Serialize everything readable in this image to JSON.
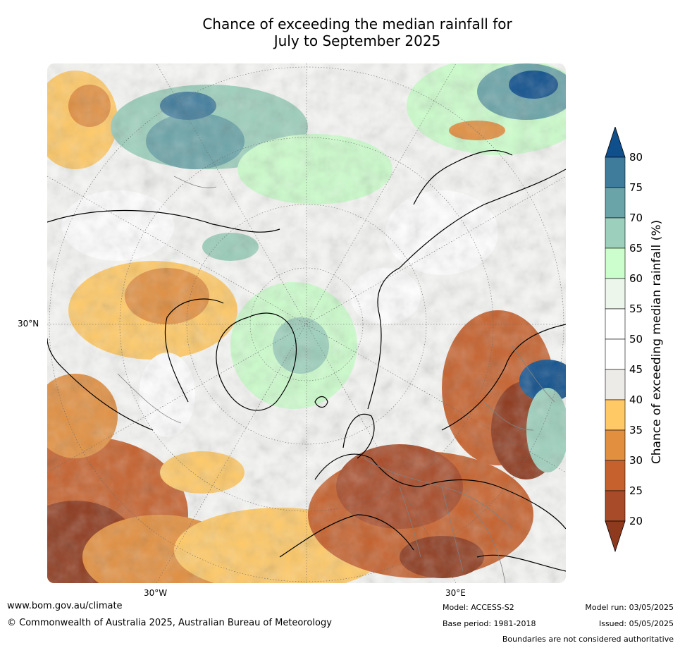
{
  "title_line1": "Chance of exceeding the median rainfall for",
  "title_line2": "July to September 2025",
  "map": {
    "lat_label": "30°N",
    "lon_labels": [
      "30°W",
      "30°E"
    ]
  },
  "colorbar": {
    "label": "Chance of exceeding median rainfall (%)",
    "ticks": [
      "80",
      "75",
      "70",
      "65",
      "60",
      "55",
      "50",
      "45",
      "40",
      "35",
      "30",
      "25",
      "20"
    ],
    "band_colors": [
      "#0e4f8c",
      "#3f7b9b",
      "#6aa4a8",
      "#9ccfbc",
      "#ccfdcc",
      "#ecf6ea",
      "#ffffff",
      "#ffffff",
      "#ecebe7",
      "#ffc966",
      "#e28f3f",
      "#c6612d",
      "#a84b29",
      "#8e3a1e"
    ]
  },
  "footer": {
    "url": "www.bom.gov.au/climate",
    "copyright": "© Commonwealth of Australia 2025, Australian Bureau of Meteorology",
    "model": "Model: ACCESS-S2",
    "base_period": "Base period: 1981-2018",
    "model_run": "Model run: 03/05/2025",
    "issued": "Issued: 05/05/2025",
    "disclaimer": "Boundaries are not considered authoritative"
  }
}
